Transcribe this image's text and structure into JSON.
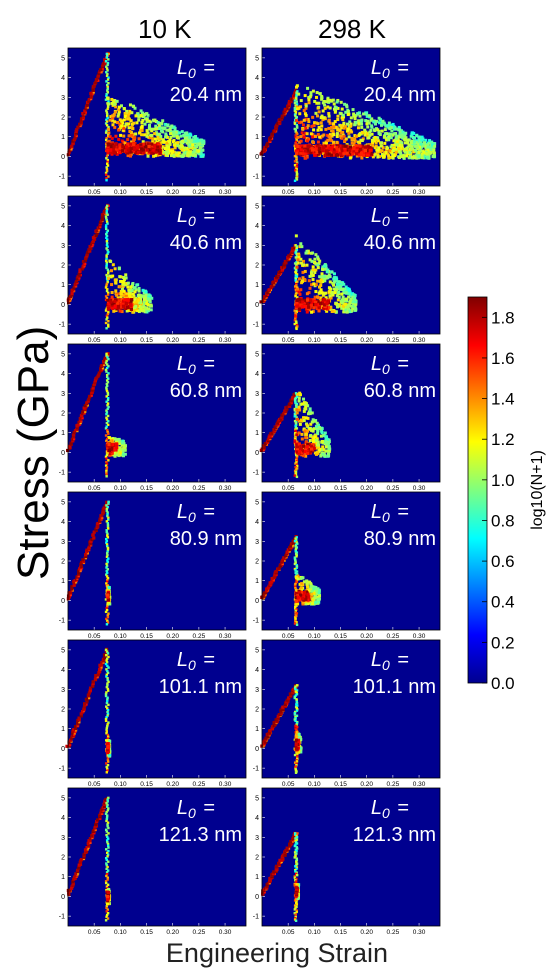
{
  "figure": {
    "ylabel": "Stress (GPa)",
    "xlabel": "Engineering Strain",
    "columns": [
      "10 K",
      "298 K"
    ],
    "colorbar": {
      "label": "log10(N+1)",
      "ticks": [
        "0.0",
        "0.2",
        "0.4",
        "0.6",
        "0.8",
        "1.0",
        "1.2",
        "1.4",
        "1.6",
        "1.8"
      ],
      "range": [
        0.0,
        1.9
      ],
      "colormap": "jet"
    },
    "length_prefix": "L",
    "length_subscript": "0",
    "length_equals": "="
  },
  "chart_data": {
    "type": "heatmap",
    "xlim": [
      0.0,
      0.34
    ],
    "ylim": [
      -1.5,
      5.5
    ],
    "xticks": [
      "0.05",
      "0.10",
      "0.15",
      "0.20",
      "0.25",
      "0.30"
    ],
    "yticks": [
      "-1",
      "0",
      "1",
      "2",
      "3",
      "4",
      "5"
    ],
    "grid": false,
    "background_color": "#00008f",
    "panels": [
      {
        "column": "10 K",
        "L0": "20.4 nm",
        "elastic_peak": [
          0.075,
          5.2
        ],
        "drop_x": 0.075,
        "spread_x": 0.26,
        "plateau_stress": 0.4,
        "spread_top": 2.8
      },
      {
        "column": "298 K",
        "L0": "20.4 nm",
        "elastic_peak": [
          0.065,
          3.3
        ],
        "drop_x": 0.065,
        "spread_x": 0.33,
        "plateau_stress": 0.3,
        "spread_top": 3.4
      },
      {
        "column": "10 K",
        "L0": "40.6 nm",
        "elastic_peak": [
          0.075,
          5.0
        ],
        "drop_x": 0.075,
        "spread_x": 0.16,
        "plateau_stress": 0.0,
        "spread_top": 2.0
      },
      {
        "column": "298 K",
        "L0": "40.6 nm",
        "elastic_peak": [
          0.065,
          3.0
        ],
        "drop_x": 0.065,
        "spread_x": 0.18,
        "plateau_stress": 0.0,
        "spread_top": 3.2
      },
      {
        "column": "10 K",
        "L0": "60.8 nm",
        "elastic_peak": [
          0.075,
          5.0
        ],
        "drop_x": 0.075,
        "spread_x": 0.11,
        "plateau_stress": 0.2,
        "spread_top": 0.4
      },
      {
        "column": "298 K",
        "L0": "60.8 nm",
        "elastic_peak": [
          0.065,
          3.0
        ],
        "drop_x": 0.065,
        "spread_x": 0.13,
        "plateau_stress": 0.2,
        "spread_top": 3.0
      },
      {
        "column": "10 K",
        "L0": "80.9 nm",
        "elastic_peak": [
          0.075,
          5.0
        ],
        "drop_x": 0.075,
        "spread_x": 0.08,
        "plateau_stress": 0.2,
        "spread_top": 0.5
      },
      {
        "column": "298 K",
        "L0": "80.9 nm",
        "elastic_peak": [
          0.065,
          3.2
        ],
        "drop_x": 0.065,
        "spread_x": 0.11,
        "plateau_stress": 0.2,
        "spread_top": 1.0
      },
      {
        "column": "10 K",
        "L0": "101.1 nm",
        "elastic_peak": [
          0.075,
          5.0
        ],
        "drop_x": 0.075,
        "spread_x": 0.08,
        "plateau_stress": 0.0,
        "spread_top": 0.0
      },
      {
        "column": "298 K",
        "L0": "101.1 nm",
        "elastic_peak": [
          0.065,
          3.2
        ],
        "drop_x": 0.065,
        "spread_x": 0.075,
        "plateau_stress": 0.2,
        "spread_top": 0.5
      },
      {
        "column": "10 K",
        "L0": "121.3 nm",
        "elastic_peak": [
          0.075,
          5.0
        ],
        "drop_x": 0.075,
        "spread_x": 0.08,
        "plateau_stress": 0.0,
        "spread_top": 0.0
      },
      {
        "column": "298 K",
        "L0": "121.3 nm",
        "elastic_peak": [
          0.065,
          3.2
        ],
        "drop_x": 0.065,
        "spread_x": 0.07,
        "plateau_stress": 0.2,
        "spread_top": 0.3
      }
    ]
  }
}
